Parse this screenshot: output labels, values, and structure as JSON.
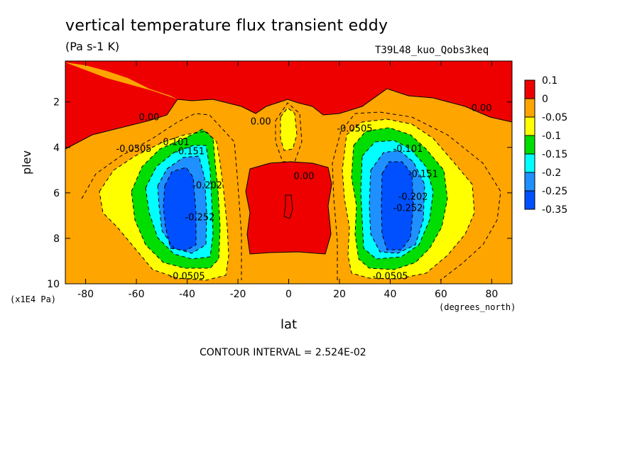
{
  "chart_data": {
    "type": "heatmap",
    "title": "vertical temperature flux transient eddy",
    "units": "(Pa s-1 K)",
    "experiment": "T39L48_kuo_Qobs3keq",
    "xlabel": "lat",
    "xunits": "(degrees_north)",
    "ylabel": "plev",
    "yunits": "(x1E4 Pa)",
    "xlim": [
      -88,
      88
    ],
    "ylim": [
      10,
      0.2
    ],
    "x_ticks": [
      -80,
      -60,
      -40,
      -20,
      0,
      20,
      40,
      60,
      80
    ],
    "x_tick_labels": [
      "-80",
      "-60",
      "-40",
      "-20",
      "0",
      "20",
      "40",
      "60",
      "80"
    ],
    "y_ticks": [
      2,
      4,
      6,
      8,
      10
    ],
    "y_tick_labels": [
      "2",
      "4",
      "6",
      "8",
      "10"
    ],
    "contour_interval_text": "CONTOUR INTERVAL = 2.524E-02",
    "colorbar": {
      "labels": [
        "0.1",
        "0",
        "-0.05",
        "-0.1",
        "-0.15",
        "-0.2",
        "-0.25",
        "-0.35"
      ],
      "colors": [
        "#ee0000",
        "#ffa500",
        "#ffff00",
        "#00dd00",
        "#00ffff",
        "#1e90ff",
        "#0050ff"
      ]
    },
    "contour_labels": [
      {
        "text": "0.00",
        "lon": -55,
        "p": 2.8
      },
      {
        "text": "0.00",
        "lon": -11,
        "p": 3.0
      },
      {
        "text": "0.00",
        "lon": 76,
        "p": 2.4
      },
      {
        "text": "0.00",
        "lon": 6,
        "p": 5.4
      },
      {
        "text": "-0.0505",
        "lon": -61,
        "p": 4.2
      },
      {
        "text": "-0.101",
        "lon": -45,
        "p": 3.9
      },
      {
        "text": "-0.151",
        "lon": -39,
        "p": 4.3
      },
      {
        "text": "-0.202",
        "lon": -32,
        "p": 5.8
      },
      {
        "text": "-0.252",
        "lon": -35,
        "p": 7.2
      },
      {
        "text": "-0.0505",
        "lon": 26,
        "p": 3.3
      },
      {
        "text": "-0.101",
        "lon": 47,
        "p": 4.2
      },
      {
        "text": "-0.151",
        "lon": 53,
        "p": 5.3
      },
      {
        "text": "-0.202",
        "lon": 49,
        "p": 6.3
      },
      {
        "text": "-0.252",
        "lon": 47,
        "p": 6.8
      },
      {
        "text": "-0.0505",
        "lon": -40,
        "p": 9.8
      },
      {
        "text": "-0.0505",
        "lon": 40,
        "p": 9.8
      }
    ]
  }
}
